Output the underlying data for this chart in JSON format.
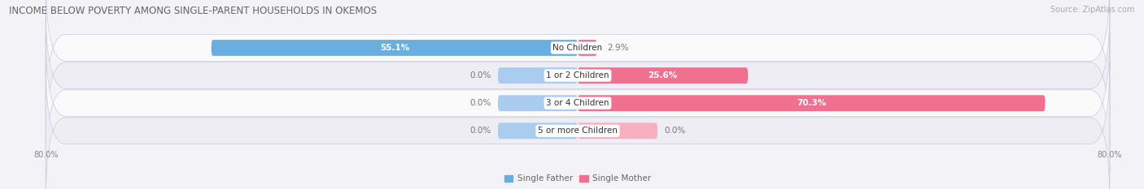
{
  "title": "INCOME BELOW POVERTY AMONG SINGLE-PARENT HOUSEHOLDS IN OKEMOS",
  "source": "Source: ZipAtlas.com",
  "categories": [
    "No Children",
    "1 or 2 Children",
    "3 or 4 Children",
    "5 or more Children"
  ],
  "single_father": [
    55.1,
    0.0,
    0.0,
    0.0
  ],
  "single_mother": [
    2.9,
    25.6,
    70.3,
    0.0
  ],
  "father_color": "#6aaee0",
  "mother_color": "#f07090",
  "father_color_light": "#aaccee",
  "mother_color_light": "#f8b0c0",
  "x_min": -80.0,
  "x_max": 80.0,
  "bar_height": 0.58,
  "bg_color": "#f2f2f7",
  "row_colors": [
    "#fafafa",
    "#ededf3"
  ],
  "title_fontsize": 8.5,
  "label_fontsize": 7.5,
  "cat_fontsize": 7.5,
  "tick_fontsize": 7,
  "legend_fontsize": 7.5
}
